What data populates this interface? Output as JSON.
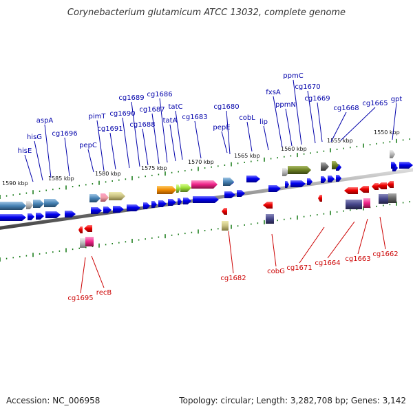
{
  "title": "Corynebacterium glutamicum ATCC 13032, complete genome",
  "accession": "Accession: NC_006958",
  "topology": "Topology: circular; Length: 3,282,708 bp; Genes: 3,142",
  "colors": {
    "forward_label": "#0000aa",
    "reverse_label": "#cc0000",
    "forward_gene": "#0000ee",
    "reverse_gene": "#ee0000",
    "tick": "#117711",
    "backbone": "#888888"
  },
  "scale_labels": [
    "1590 kbp",
    "1585 kbp",
    "1580 kbp",
    "1575 kbp",
    "1570 kbp",
    "1565 kbp",
    "1560 kbp",
    "1555 kbp",
    "1550 kbp"
  ],
  "forward_genes": [
    "hisE",
    "hisG",
    "aspA",
    "cg1696",
    "pepC",
    "pimT",
    "cg1691",
    "cg1690",
    "cg1689",
    "cg1688",
    "cg1687",
    "cg1686",
    "tatA",
    "tatC",
    "cg1683",
    "cg1680",
    "pepE",
    "cobL",
    "lip",
    "fxsA",
    "ppmN",
    "ppmC",
    "cg1670",
    "cg1669",
    "cg1668",
    "cg1665",
    "gpt"
  ],
  "reverse_genes": [
    "cg1695",
    "recB",
    "cg1682",
    "cobG",
    "cg1671",
    "cg1664",
    "cg1663",
    "cg1662"
  ]
}
